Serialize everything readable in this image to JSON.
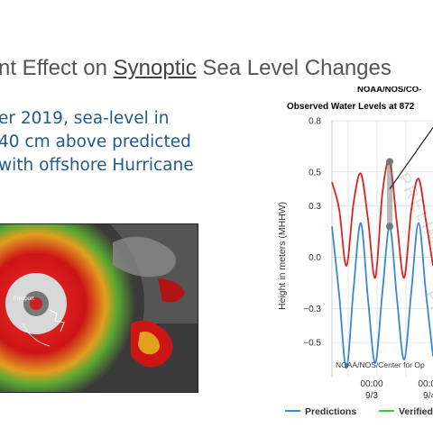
{
  "slide": {
    "title_pre": "nt Effect on ",
    "title_underlined": "Synoptic",
    "title_post": " Sea Level Changes",
    "bullet_lines": [
      "er 2019, sea-level in",
      "40 cm above predicted",
      "with offshore Hurricane"
    ]
  },
  "satellite": {
    "city_label": "Freeport"
  },
  "chart_data": {
    "type": "line",
    "title_line1": "NOAA/NOS/CO-",
    "title_line2": "Observed Water Levels at 872",
    "ylabel": "Height in meters (MHHW)",
    "ylim": [
      -0.7,
      0.8
    ],
    "yticks": [
      "0.8",
      "0.5",
      "0.3",
      "0.0",
      "−0.3",
      "−0.5"
    ],
    "ytick_values": [
      0.8,
      0.5,
      0.3,
      0.0,
      -0.3,
      -0.5
    ],
    "xticks": [
      {
        "time": "00:00",
        "date": "9/3"
      },
      {
        "time": "00:00",
        "date": "9/4"
      }
    ],
    "watermark": "PRELIMINARY",
    "credit": "NOAA/NOS/Center for Op",
    "legend": [
      "Predictions",
      "Verified"
    ],
    "series": [
      {
        "name": "Verified",
        "color": "#dd2222",
        "x": [
          0,
          0.25,
          0.5,
          0.75,
          1.0,
          1.25,
          1.5,
          1.75,
          2.0,
          2.25,
          2.5,
          2.75,
          3.0,
          3.25,
          3.5
        ],
        "values": [
          0.44,
          0.28,
          -0.05,
          0.32,
          0.49,
          0.22,
          -0.12,
          0.38,
          0.56,
          0.2,
          -0.12,
          0.28,
          0.46,
          0.22,
          -0.05
        ]
      },
      {
        "name": "Predictions",
        "color": "#3a87d6",
        "x": [
          0,
          0.25,
          0.5,
          0.75,
          1.0,
          1.25,
          1.5,
          1.75,
          2.0,
          2.25,
          2.5,
          2.75,
          3.0,
          3.25,
          3.5
        ],
        "values": [
          0.18,
          -0.22,
          -0.65,
          -0.18,
          0.2,
          -0.25,
          -0.62,
          -0.2,
          0.18,
          -0.24,
          -0.6,
          -0.2,
          0.2,
          -0.2,
          -0.58
        ]
      }
    ]
  },
  "colors": {
    "title_text": "#555555",
    "bullet_text": "#1f5a8c",
    "grid": "#e6e6e6",
    "verified_legend": "#33cc33"
  }
}
